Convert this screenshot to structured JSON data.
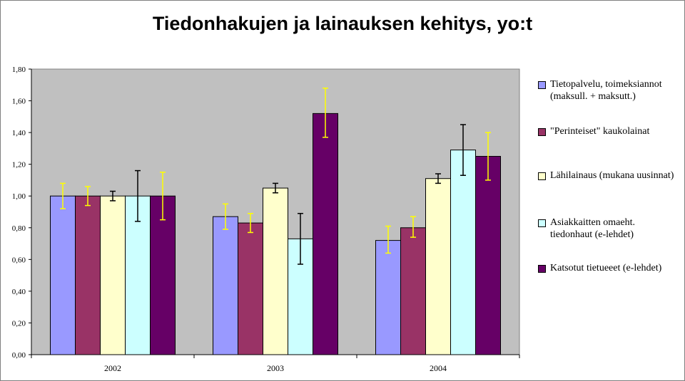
{
  "chart_data": {
    "type": "bar",
    "title": "Tiedonhakujen ja lainauksen kehitys, yo:t",
    "categories": [
      "2002",
      "2003",
      "2004"
    ],
    "ylim": [
      0,
      1.8
    ],
    "yticks": [
      "0,00",
      "0,20",
      "0,40",
      "0,60",
      "0,80",
      "1,00",
      "1,20",
      "1,40",
      "1,60",
      "1,80"
    ],
    "grid": false,
    "legend_position": "right",
    "series": [
      {
        "name": "Tietopalvelu, toimeksiannot\n(maksull. + maksutt.)",
        "color": "#9999ff",
        "errcolor": "#ffff00",
        "values": [
          1.0,
          0.87,
          0.72
        ],
        "err_low": [
          0.92,
          0.79,
          0.64
        ],
        "err_high": [
          1.08,
          0.95,
          0.81
        ]
      },
      {
        "name": "\"Perinteiset\" kaukolainat",
        "color": "#993366",
        "errcolor": "#ffff00",
        "values": [
          1.0,
          0.83,
          0.8
        ],
        "err_low": [
          0.94,
          0.77,
          0.74
        ],
        "err_high": [
          1.06,
          0.89,
          0.87
        ]
      },
      {
        "name": "Lähilainaus (mukana uusinnat)",
        "color": "#ffffcc",
        "errcolor": "#000000",
        "values": [
          1.0,
          1.05,
          1.11
        ],
        "err_low": [
          0.97,
          1.02,
          1.08
        ],
        "err_high": [
          1.03,
          1.08,
          1.14
        ]
      },
      {
        "name": "Asiakkaitten omaeht.\ntiedonhaut (e-lehdet)",
        "color": "#ccffff",
        "errcolor": "#000000",
        "values": [
          1.0,
          0.73,
          1.29
        ],
        "err_low": [
          0.84,
          0.57,
          1.13
        ],
        "err_high": [
          1.16,
          0.89,
          1.45
        ]
      },
      {
        "name": "Katsotut tietueeet (e-lehdet)",
        "color": "#660066",
        "errcolor": "#ffff00",
        "values": [
          1.0,
          1.52,
          1.25
        ],
        "err_low": [
          0.85,
          1.37,
          1.1
        ],
        "err_high": [
          1.15,
          1.68,
          1.4
        ]
      }
    ]
  },
  "colors": {
    "plot_background": "#c0c0c0",
    "axis": "#000000"
  }
}
